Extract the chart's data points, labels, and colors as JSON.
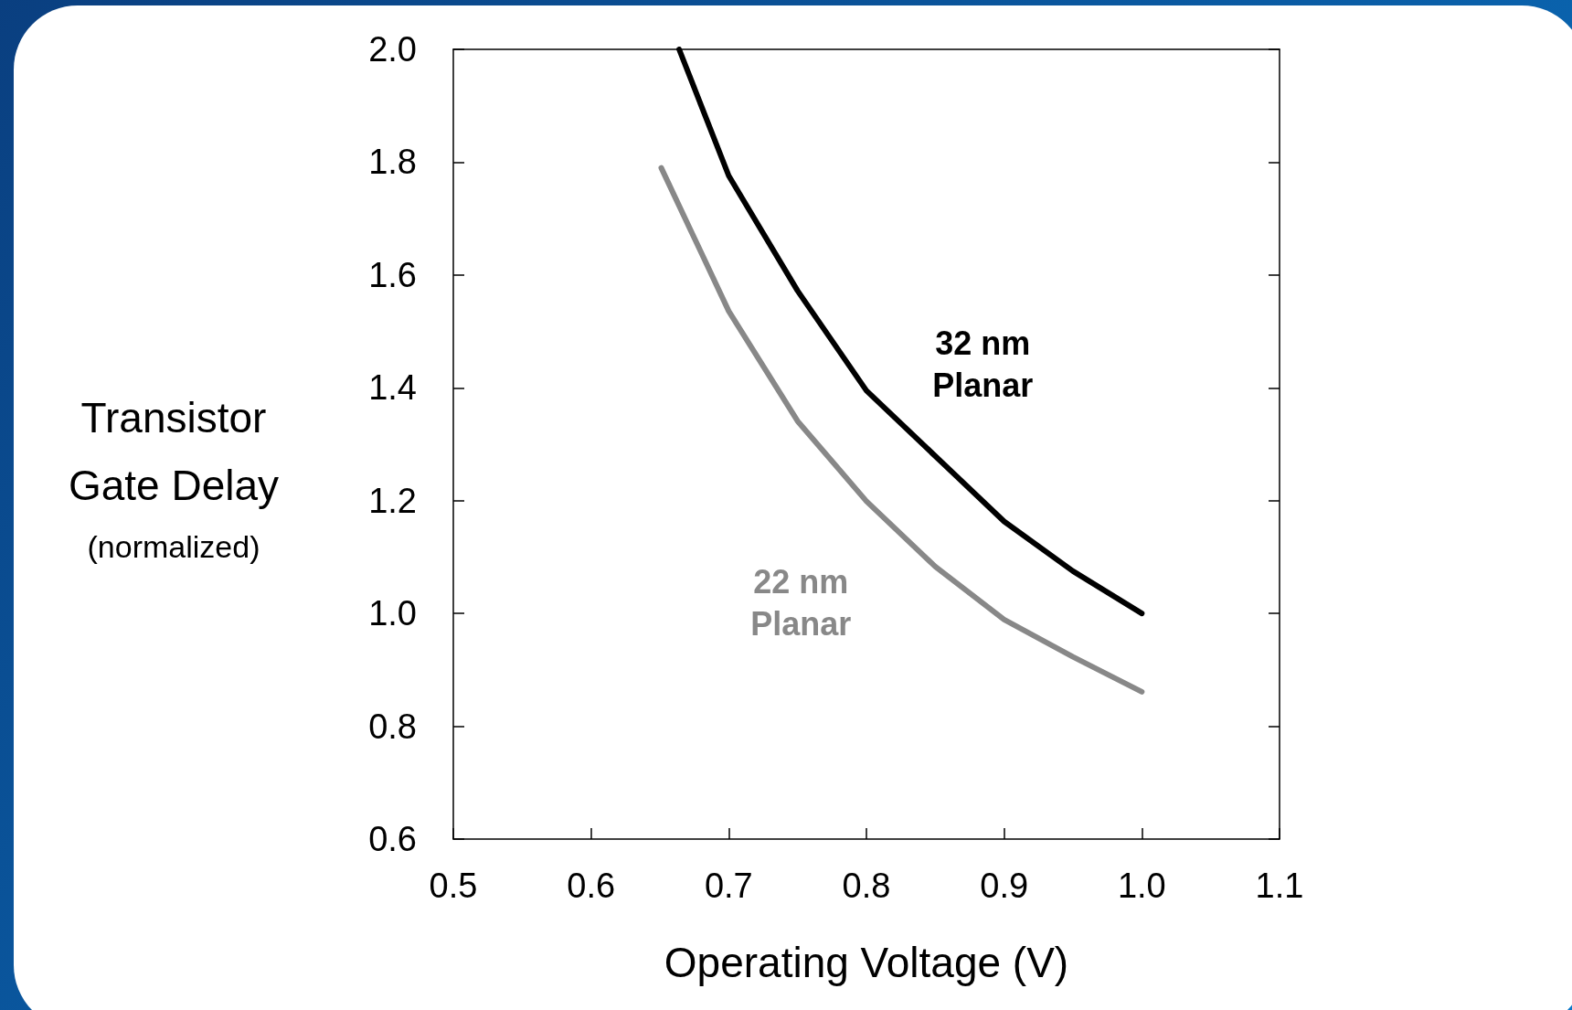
{
  "chart_data": {
    "type": "line",
    "xlabel": "Operating Voltage (V)",
    "ylabel": "Transistor\nGate Delay\n(normalized)",
    "xlim": [
      0.5,
      1.1
    ],
    "xticks": [
      {
        "value": 0.5,
        "label": "0.5"
      },
      {
        "value": 0.6,
        "label": "0.6"
      },
      {
        "value": 0.7,
        "label": "0.7"
      },
      {
        "value": 0.8,
        "label": "0.8"
      },
      {
        "value": 0.9,
        "label": "0.9"
      },
      {
        "value": 1.0,
        "label": "1.0"
      },
      {
        "value": 1.1,
        "label": "1.1"
      }
    ],
    "ylim": [
      0.6,
      2.0
    ],
    "yticks": [
      {
        "value": 0.6,
        "label": "0.6"
      },
      {
        "value": 0.8,
        "label": "0.8"
      },
      {
        "value": 1.0,
        "label": "1.0"
      },
      {
        "value": 1.2,
        "label": "1.2"
      },
      {
        "value": 1.4,
        "label": "1.4"
      },
      {
        "value": 1.6,
        "label": "1.6"
      },
      {
        "value": 1.8,
        "label": "1.8"
      },
      {
        "value": 2.0,
        "label": "2.0"
      }
    ],
    "grid": false,
    "marker": "none",
    "line_style": "solid",
    "series": [
      {
        "name": "32 nm\nPlanar",
        "color": "#000000",
        "x": [
          0.664,
          0.7,
          0.75,
          0.8,
          0.85,
          0.9,
          0.95,
          1.0
        ],
        "values": [
          2.0,
          1.776,
          1.572,
          1.395,
          1.279,
          1.163,
          1.075,
          1.0
        ]
      },
      {
        "name": "22 nm\nPlanar",
        "color": "#888888",
        "x": [
          0.651,
          0.7,
          0.75,
          0.8,
          0.85,
          0.9,
          0.95,
          1.0
        ],
        "values": [
          1.79,
          1.536,
          1.341,
          1.199,
          1.083,
          0.989,
          0.923,
          0.861
        ]
      }
    ]
  }
}
